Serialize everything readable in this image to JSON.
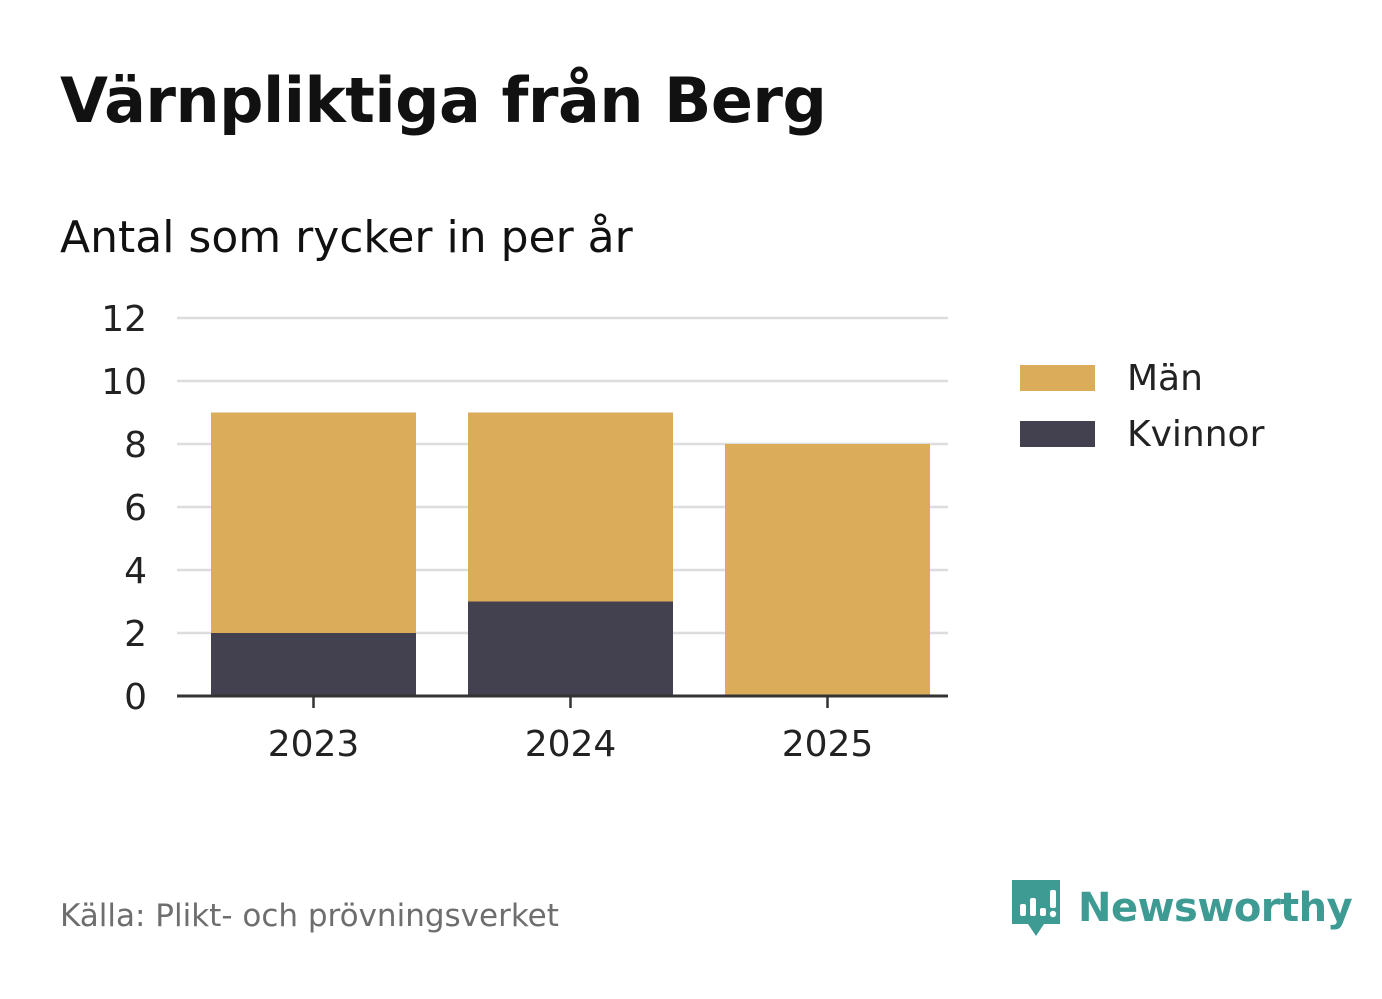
{
  "header": {
    "title": "Värnpliktiga från Berg",
    "subtitle": "Antal som rycker in per år"
  },
  "footer": {
    "source": "Källa: Plikt- och prövningsverket",
    "brand": "Newsworthy"
  },
  "colors": {
    "men": "#dbad5b",
    "women": "#43404f",
    "grid": "#dddddd",
    "axis": "#333333",
    "brand": "#3d9b94"
  },
  "chart_data": {
    "type": "bar",
    "stacked": true,
    "categories": [
      "2023",
      "2024",
      "2025"
    ],
    "series": [
      {
        "name": "Kvinnor",
        "values": [
          2,
          3,
          0
        ]
      },
      {
        "name": "Män",
        "values": [
          7,
          6,
          8
        ]
      }
    ],
    "legend": [
      "Män",
      "Kvinnor"
    ],
    "legend_position": "right",
    "ylim": [
      0,
      12
    ],
    "yticks": [
      "0",
      "2",
      "4",
      "6",
      "8",
      "10",
      "12"
    ],
    "grid": true,
    "xlabel": "",
    "ylabel": ""
  }
}
